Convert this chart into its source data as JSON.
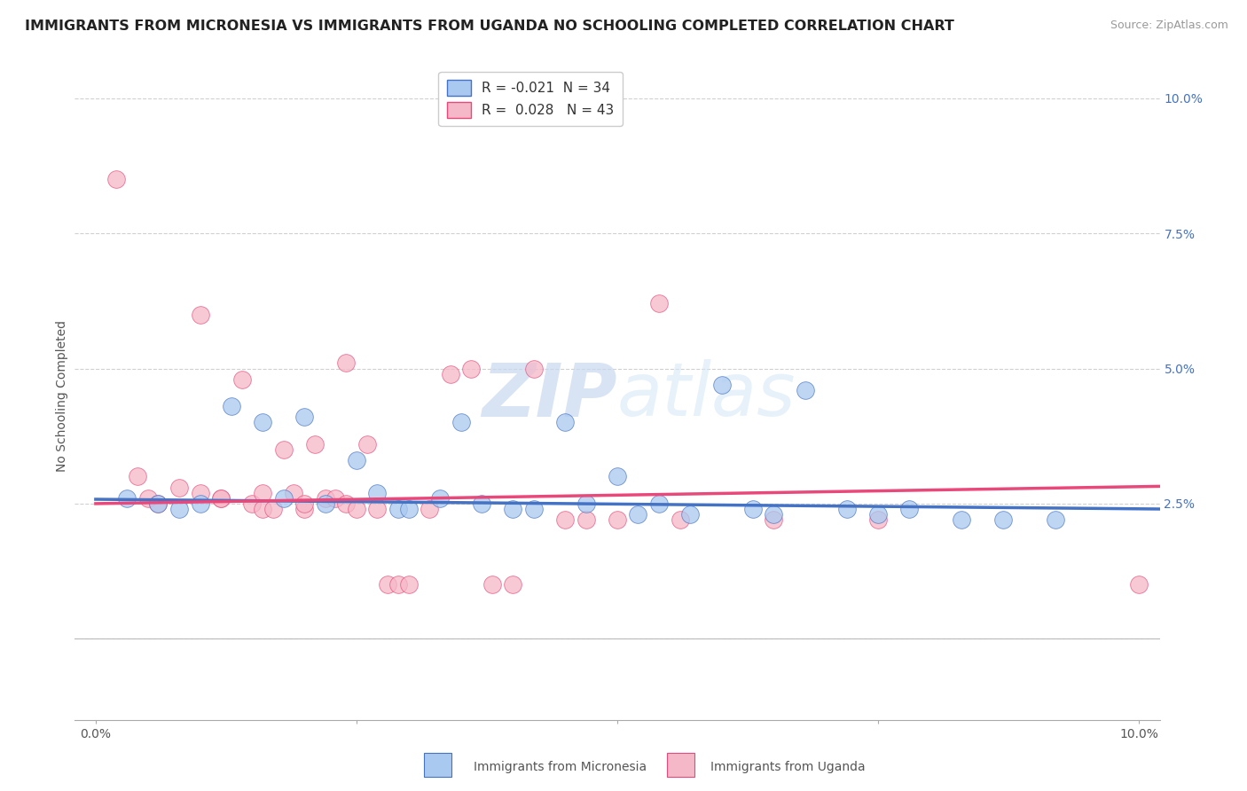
{
  "title": "IMMIGRANTS FROM MICRONESIA VS IMMIGRANTS FROM UGANDA NO SCHOOLING COMPLETED CORRELATION CHART",
  "source": "Source: ZipAtlas.com",
  "ylabel": "No Schooling Completed",
  "xlim": [
    -0.002,
    0.102
  ],
  "ylim": [
    -0.015,
    0.105
  ],
  "xticks": [
    0.0,
    0.1
  ],
  "xtick_labels": [
    "0.0%",
    "10.0%"
  ],
  "yticks": [
    0.0,
    0.025,
    0.05,
    0.075,
    0.1
  ],
  "ytick_labels": [
    "",
    "2.5%",
    "5.0%",
    "7.5%",
    "10.0%"
  ],
  "background_color": "#ffffff",
  "watermark_text": "ZIPatlas",
  "blue_series": {
    "label": "Immigrants from Micronesia",
    "color": "#aac9f0",
    "edge_color": "#4472c4",
    "R": "-0.021",
    "N": "34",
    "points": [
      [
        0.003,
        0.026
      ],
      [
        0.006,
        0.025
      ],
      [
        0.008,
        0.024
      ],
      [
        0.01,
        0.025
      ],
      [
        0.013,
        0.043
      ],
      [
        0.016,
        0.04
      ],
      [
        0.018,
        0.026
      ],
      [
        0.02,
        0.041
      ],
      [
        0.022,
        0.025
      ],
      [
        0.025,
        0.033
      ],
      [
        0.027,
        0.027
      ],
      [
        0.029,
        0.024
      ],
      [
        0.03,
        0.024
      ],
      [
        0.033,
        0.026
      ],
      [
        0.035,
        0.04
      ],
      [
        0.037,
        0.025
      ],
      [
        0.04,
        0.024
      ],
      [
        0.042,
        0.024
      ],
      [
        0.045,
        0.04
      ],
      [
        0.047,
        0.025
      ],
      [
        0.05,
        0.03
      ],
      [
        0.052,
        0.023
      ],
      [
        0.054,
        0.025
      ],
      [
        0.057,
        0.023
      ],
      [
        0.06,
        0.047
      ],
      [
        0.063,
        0.024
      ],
      [
        0.065,
        0.023
      ],
      [
        0.068,
        0.046
      ],
      [
        0.072,
        0.024
      ],
      [
        0.075,
        0.023
      ],
      [
        0.078,
        0.024
      ],
      [
        0.083,
        0.022
      ],
      [
        0.087,
        0.022
      ],
      [
        0.092,
        0.022
      ]
    ],
    "trend_x": [
      0.0,
      0.102
    ],
    "trend_y": [
      0.0258,
      0.024
    ]
  },
  "pink_series": {
    "label": "Immigrants from Uganda",
    "color": "#f5b8c8",
    "edge_color": "#e8497a",
    "R": "0.028",
    "N": "43",
    "points": [
      [
        0.002,
        0.085
      ],
      [
        0.004,
        0.03
      ],
      [
        0.005,
        0.026
      ],
      [
        0.006,
        0.025
      ],
      [
        0.008,
        0.028
      ],
      [
        0.01,
        0.027
      ],
      [
        0.01,
        0.06
      ],
      [
        0.012,
        0.026
      ],
      [
        0.012,
        0.026
      ],
      [
        0.014,
        0.048
      ],
      [
        0.015,
        0.025
      ],
      [
        0.016,
        0.027
      ],
      [
        0.016,
        0.024
      ],
      [
        0.017,
        0.024
      ],
      [
        0.018,
        0.035
      ],
      [
        0.019,
        0.027
      ],
      [
        0.02,
        0.024
      ],
      [
        0.02,
        0.025
      ],
      [
        0.021,
        0.036
      ],
      [
        0.022,
        0.026
      ],
      [
        0.023,
        0.026
      ],
      [
        0.024,
        0.051
      ],
      [
        0.024,
        0.025
      ],
      [
        0.025,
        0.024
      ],
      [
        0.026,
        0.036
      ],
      [
        0.027,
        0.024
      ],
      [
        0.028,
        0.01
      ],
      [
        0.029,
        0.01
      ],
      [
        0.03,
        0.01
      ],
      [
        0.032,
        0.024
      ],
      [
        0.034,
        0.049
      ],
      [
        0.036,
        0.05
      ],
      [
        0.038,
        0.01
      ],
      [
        0.04,
        0.01
      ],
      [
        0.042,
        0.05
      ],
      [
        0.045,
        0.022
      ],
      [
        0.047,
        0.022
      ],
      [
        0.05,
        0.022
      ],
      [
        0.054,
        0.062
      ],
      [
        0.056,
        0.022
      ],
      [
        0.065,
        0.022
      ],
      [
        0.075,
        0.022
      ],
      [
        0.1,
        0.01
      ]
    ],
    "trend_x": [
      0.0,
      0.102
    ],
    "trend_y": [
      0.025,
      0.0282
    ]
  },
  "grid_color": "#d0d0d0",
  "trend_blue_color": "#4472c4",
  "trend_pink_color": "#e8497a",
  "title_fontsize": 11.5,
  "axis_fontsize": 10,
  "legend_fontsize": 11
}
